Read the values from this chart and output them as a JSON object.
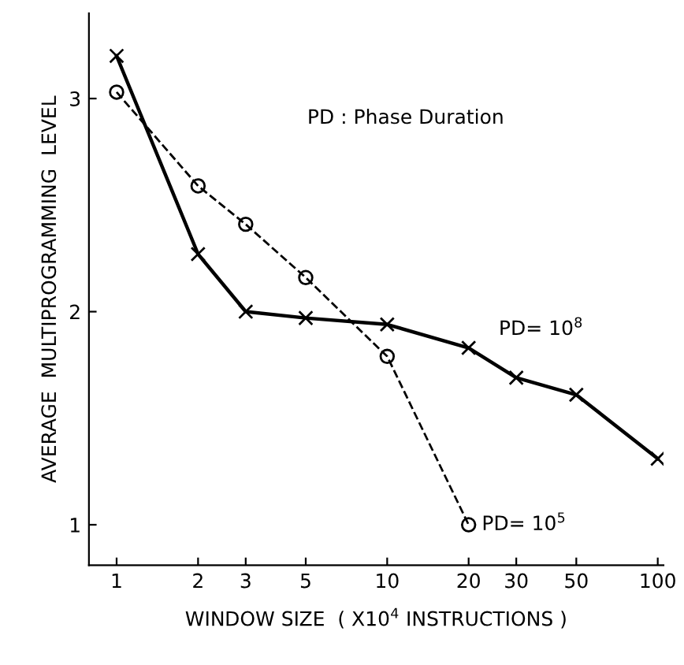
{
  "chart_data": {
    "type": "line",
    "xlabel": "WINDOW SIZE  ( X10$^{4}$ INSTRUCTIONS )",
    "ylabel": "AVERAGE  MULTIPROGRAMMING  LEVEL",
    "log": "x",
    "xlim": [
      0.79,
      105
    ],
    "xticks": [
      1,
      2,
      3,
      5,
      10,
      20,
      30,
      50,
      100
    ],
    "ylim": [
      0.81,
      3.4
    ],
    "yticks": [
      1,
      2,
      3
    ],
    "grid": false,
    "legend": false,
    "annotations": [
      "PD : Phase Duration"
    ],
    "series": [
      {
        "name": "PD= 10$^{8}$",
        "color": "#000000",
        "marker": "cross",
        "line_style": "solid",
        "x": [
          1,
          2,
          3,
          5,
          10,
          20,
          30,
          50,
          100
        ],
        "values": [
          3.2,
          2.27,
          2.0,
          1.97,
          1.94,
          1.83,
          1.69,
          1.61,
          1.31
        ]
      },
      {
        "name": "PD= 10$^{5}$",
        "color": "#000000",
        "marker": "circle",
        "line_style": "dashed",
        "x": [
          1,
          2,
          3,
          5,
          10,
          20
        ],
        "values": [
          3.03,
          2.59,
          2.41,
          2.16,
          1.79,
          1.0
        ]
      }
    ]
  }
}
